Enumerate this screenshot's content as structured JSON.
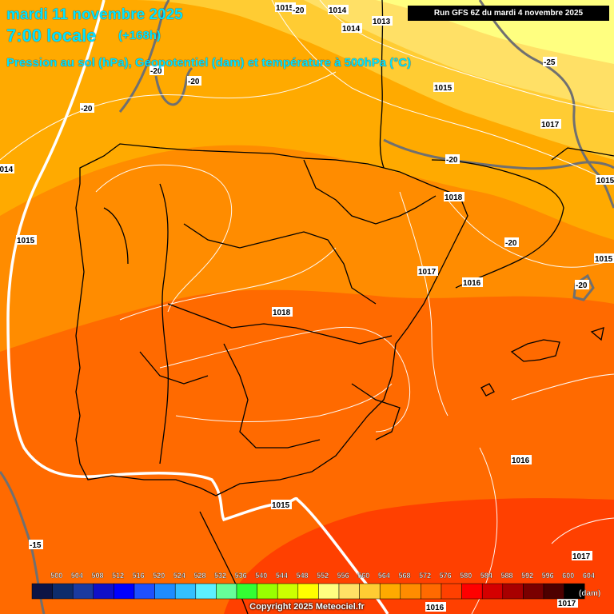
{
  "header": {
    "date": "mardi 11 novembre 2025",
    "time": "7:00 locale",
    "lead": "(+168h)",
    "subtitle": "Pression au sol (hPa), Geopotentiel (dam) et température à 500hPa (°C)",
    "run": "Run GFS 6Z du mardi 4 novembre 2025"
  },
  "legend": {
    "values": [
      "500",
      "504",
      "508",
      "512",
      "516",
      "520",
      "524",
      "528",
      "532",
      "536",
      "540",
      "544",
      "548",
      "552",
      "556",
      "560",
      "564",
      "568",
      "572",
      "576",
      "580",
      "584",
      "588",
      "592",
      "596",
      "600",
      "604"
    ],
    "colors": [
      "#0c1445",
      "#0d2c6b",
      "#1a3aa0",
      "#1010c8",
      "#0000ff",
      "#1e50ff",
      "#1e8cff",
      "#33c0ff",
      "#5cf0ff",
      "#66ff99",
      "#33ff33",
      "#99ff00",
      "#ccff00",
      "#ffff00",
      "#ffff80",
      "#ffe066",
      "#ffcc33",
      "#ffaa00",
      "#ff8c00",
      "#ff6a00",
      "#ff4000",
      "#ff0000",
      "#d40000",
      "#a80000",
      "#7a0000",
      "#4d0000",
      "#000000"
    ],
    "unit": "(dam)"
  },
  "isobar_labels": [
    "1015",
    "1014",
    "1013",
    "1014",
    "1015",
    "1017",
    "1015",
    "1014",
    "1015",
    "1018",
    "1017",
    "1016",
    "1015",
    "1018",
    "1016",
    "1015",
    "1016",
    "1017",
    "1017"
  ],
  "temperature_labels": [
    "-20",
    "-20",
    "-20",
    "-20",
    "-25",
    "-20",
    "-20",
    "-20",
    "-15"
  ],
  "copyright": "Copyright 2025 Meteociel.fr",
  "bottom_value": "1016"
}
